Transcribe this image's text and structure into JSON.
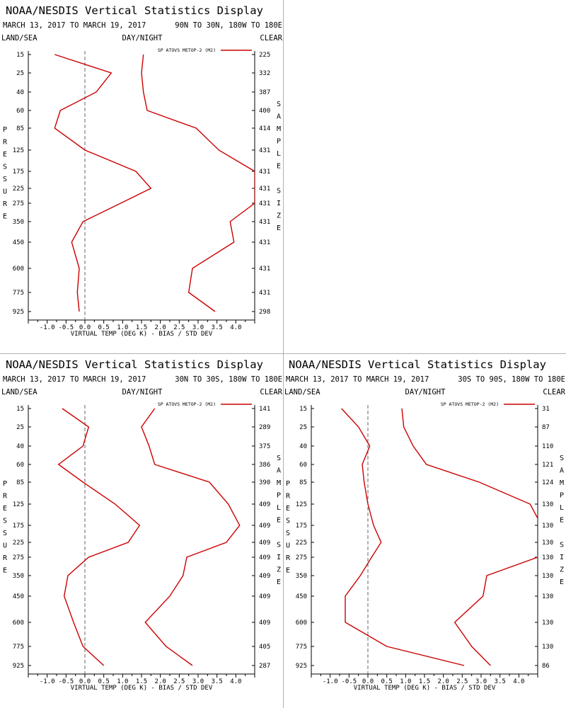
{
  "panel_title": "NOAA/NESDIS Vertical Statistics Display",
  "date_range": "MARCH 13, 2017 TO MARCH 19, 2017",
  "land_sea": "LAND/SEA",
  "day_night": "DAY/NIGHT",
  "clear": "CLEAR",
  "y_label_letters": [
    "P",
    "R",
    "E",
    "S",
    "S",
    "U",
    "R",
    "E"
  ],
  "sample_size_letters": [
    "S",
    "A",
    "M",
    "P",
    "L",
    "E",
    "",
    "S",
    "I",
    "Z",
    "E"
  ],
  "colors": {
    "series": "#cc0000",
    "axis": "#000000",
    "zero_line": "#666666",
    "divider": "#b0b0b0"
  },
  "chart_data": [
    {
      "type": "line",
      "region": "90N TO 30N, 180W TO 180E",
      "legend": "SP ATOVS METOP-2 (M2)",
      "xlabel": "VIRTUAL TEMP (DEG K) - BIAS / STD DEV",
      "xlim": [
        -1.5,
        4.5
      ],
      "x_ticks": [
        "-1.0",
        "-0.5",
        "0.0",
        "0.5",
        "1.0",
        "1.5",
        "2.0",
        "2.5",
        "3.0",
        "3.5",
        "4.0"
      ],
      "pressure_levels": [
        "15",
        "25",
        "40",
        "60",
        "85",
        "125",
        "175",
        "225",
        "275",
        "350",
        "450",
        "600",
        "775",
        "925"
      ],
      "sample_size": [
        "225",
        "332",
        "387",
        "400",
        "414",
        "431",
        "431",
        "431",
        "431",
        "431",
        "431",
        "431",
        "431",
        "298"
      ],
      "series": [
        {
          "kind": "bias",
          "values": [
            -0.8,
            0.7,
            0.3,
            -0.65,
            -0.8,
            0.0,
            1.35,
            1.75,
            0.95,
            -0.05,
            -0.35,
            -0.15,
            -0.2,
            -0.15
          ]
        },
        {
          "kind": "std_dev",
          "values": [
            1.55,
            1.5,
            1.55,
            1.65,
            2.95,
            3.55,
            4.5,
            4.5,
            4.5,
            3.85,
            3.95,
            2.85,
            2.75,
            3.45
          ]
        }
      ]
    },
    {
      "type": "line",
      "region": "30N TO 30S, 180W TO 180E",
      "legend": "SP ATOVS METOP-2 (M2)",
      "xlabel": "VIRTUAL TEMP (DEG K) - BIAS / STD DEV",
      "xlim": [
        -1.5,
        4.5
      ],
      "x_ticks": [
        "-1.0",
        "-0.5",
        "0.0",
        "0.5",
        "1.0",
        "1.5",
        "2.0",
        "2.5",
        "3.0",
        "3.5",
        "4.0"
      ],
      "pressure_levels": [
        "15",
        "25",
        "40",
        "60",
        "85",
        "125",
        "175",
        "225",
        "275",
        "350",
        "450",
        "600",
        "775",
        "925"
      ],
      "sample_size": [
        "141",
        "289",
        "375",
        "386",
        "390",
        "409",
        "409",
        "409",
        "409",
        "409",
        "409",
        "409",
        "405",
        "287"
      ],
      "series": [
        {
          "kind": "bias",
          "values": [
            -0.6,
            0.1,
            -0.05,
            -0.7,
            -0.05,
            0.8,
            1.45,
            1.15,
            0.1,
            -0.45,
            -0.55,
            -0.3,
            -0.05,
            0.5
          ]
        },
        {
          "kind": "std_dev",
          "values": [
            1.85,
            1.5,
            1.7,
            1.85,
            3.3,
            3.8,
            4.1,
            3.75,
            2.7,
            2.6,
            2.25,
            1.6,
            2.15,
            2.85
          ]
        }
      ]
    },
    {
      "type": "line",
      "region": "30S TO 90S, 180W TO 180E",
      "legend": "SP ATOVS METOP-2 (M2)",
      "xlabel": "VIRTUAL TEMP (DEG K) - BIAS / STD DEV",
      "xlim": [
        -1.5,
        4.5
      ],
      "x_ticks": [
        "-1.0",
        "-0.5",
        "0.0",
        "0.5",
        "1.0",
        "1.5",
        "2.0",
        "2.5",
        "3.0",
        "3.5",
        "4.0"
      ],
      "pressure_levels": [
        "15",
        "25",
        "40",
        "60",
        "85",
        "125",
        "175",
        "225",
        "275",
        "350",
        "450",
        "600",
        "775",
        "925"
      ],
      "sample_size": [
        "31",
        "87",
        "110",
        "121",
        "124",
        "130",
        "130",
        "130",
        "130",
        "130",
        "130",
        "130",
        "130",
        "86"
      ],
      "series": [
        {
          "kind": "bias",
          "values": [
            -0.7,
            -0.25,
            0.05,
            -0.15,
            -0.1,
            0.0,
            0.15,
            0.35,
            0.1,
            -0.2,
            -0.6,
            -0.6,
            0.5,
            2.55
          ]
        },
        {
          "kind": "std_dev",
          "values": [
            0.9,
            0.95,
            1.2,
            1.55,
            2.95,
            4.3,
            4.6,
            4.6,
            4.5,
            3.15,
            3.05,
            2.3,
            2.75,
            3.25
          ]
        }
      ]
    }
  ]
}
